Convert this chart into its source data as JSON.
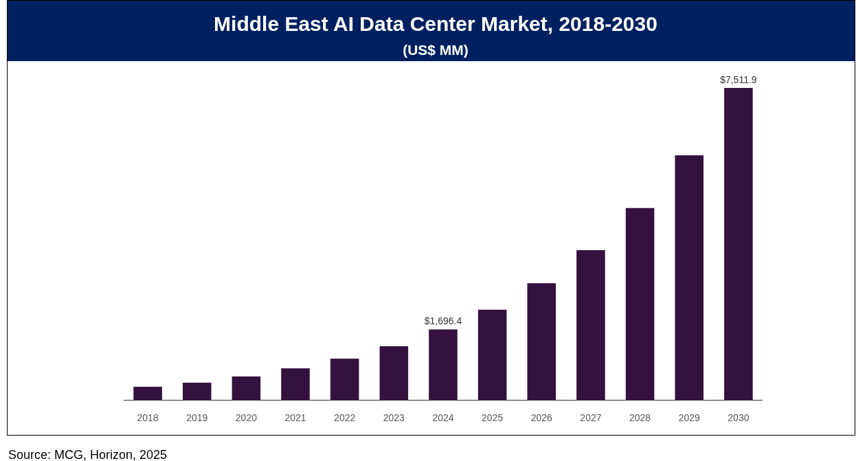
{
  "chart_data": {
    "type": "bar",
    "title": "Middle East AI Data Center Market, 2018-2030",
    "subtitle": "(US$ MM)",
    "categories": [
      "2018",
      "2019",
      "2020",
      "2021",
      "2022",
      "2023",
      "2024",
      "2025",
      "2026",
      "2027",
      "2028",
      "2029",
      "2030"
    ],
    "values": [
      316,
      413,
      563,
      759,
      992,
      1292,
      1696.4,
      2171,
      2809,
      3606,
      4620,
      5889,
      7511.9
    ],
    "value_labels": [
      null,
      null,
      null,
      null,
      null,
      null,
      "$1,696.4",
      null,
      null,
      null,
      null,
      null,
      "$7,511.9"
    ],
    "color": "#35113f",
    "annotations": [
      "Source: MCG, Horizon, 2025"
    ]
  }
}
